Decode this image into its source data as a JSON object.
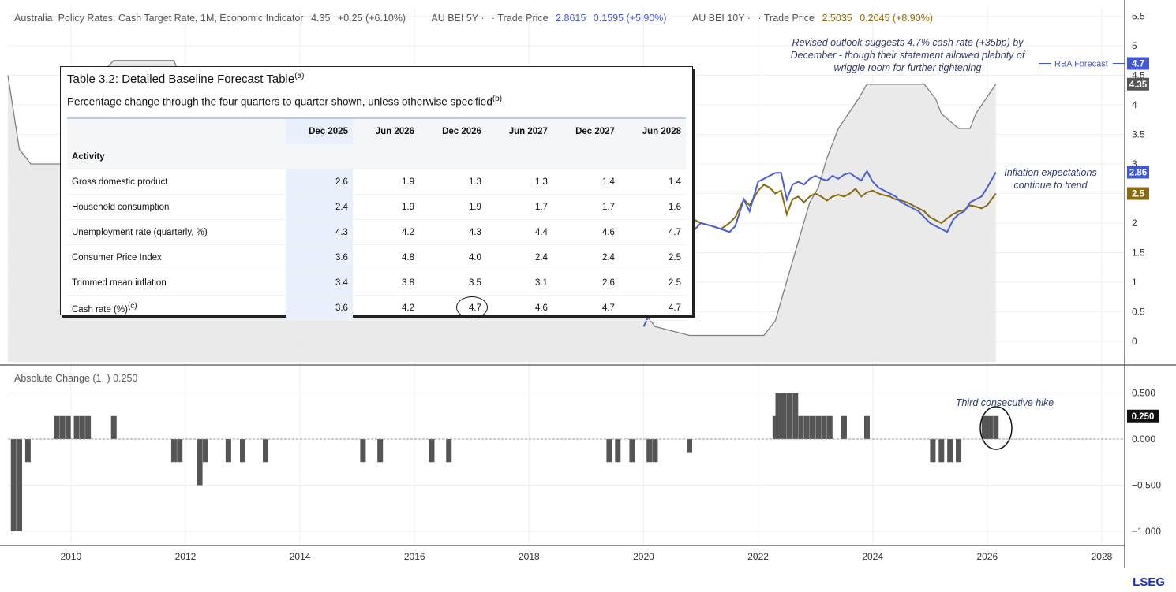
{
  "header": {
    "main_series": "Australia, Policy Rates, Cash Target Rate, 1M, Economic Indicator",
    "main_value": "4.35",
    "main_change": "+0.25 (+6.10%)",
    "bei5_name": "AU BEI 5Y ·",
    "bei5_trade_label": "· Trade Price",
    "bei5_value": "2.8615",
    "bei5_change": "0.1595 (+5.90%)",
    "bei10_name": "AU BEI 10Y ·",
    "bei10_trade_label": "· Trade Price",
    "bei10_value": "2.5035",
    "bei10_change": "0.2045 (+8.90%)"
  },
  "subpanel_title": "Absolute Change (1, )  0.250",
  "annotations": {
    "outlook": "Revised outlook suggests 4.7% cash rate (+35bp) by December - though their statement allowed plebnty of wriggle room for further tightening",
    "inflation": "Inflation expectations continue to trend",
    "hike": "Third consecutive hike",
    "rba_label": "RBA Forecast"
  },
  "logo": "LSEG",
  "colors": {
    "cash_rate": "#808080",
    "cash_fill": "#e6e6e6",
    "bei5": "#4a5ed6",
    "bei10": "#8a6a10",
    "bars": "#555555"
  },
  "table": {
    "title": "Table 3.2: Detailed Baseline Forecast Table",
    "title_sup": "(a)",
    "subtitle": "Percentage change through the four quarters to quarter shown, unless otherwise specified",
    "subtitle_sup": "(b)",
    "columns": [
      "Dec 2025",
      "Jun 2026",
      "Dec 2026",
      "Jun 2027",
      "Dec 2027",
      "Jun 2028"
    ],
    "section": "Activity",
    "rows": [
      {
        "label": "Gross domestic product",
        "values": [
          "2.6",
          "1.9",
          "1.3",
          "1.3",
          "1.4",
          "1.4"
        ]
      },
      {
        "label": "Household consumption",
        "values": [
          "2.4",
          "1.9",
          "1.9",
          "1.7",
          "1.7",
          "1.6"
        ]
      },
      {
        "label": "Unemployment rate (quarterly, %)",
        "values": [
          "4.3",
          "4.2",
          "4.3",
          "4.4",
          "4.6",
          "4.7"
        ]
      },
      {
        "label": "Consumer Price Index",
        "values": [
          "3.6",
          "4.8",
          "4.0",
          "2.4",
          "2.4",
          "2.5"
        ]
      },
      {
        "label": "Trimmed mean inflation",
        "values": [
          "3.4",
          "3.8",
          "3.5",
          "3.1",
          "2.6",
          "2.5"
        ]
      },
      {
        "label": "Cash rate (%)",
        "label_sup": "(c)",
        "values": [
          "3.6",
          "4.2",
          "4.7",
          "4.6",
          "4.7",
          "4.7"
        ]
      }
    ]
  },
  "chart_data": [
    {
      "type": "line",
      "x_axis_ticks": [
        "2010",
        "2012",
        "2014",
        "2016",
        "2018",
        "2020",
        "2022",
        "2024",
        "2026",
        "2028"
      ],
      "xlim": [
        2008.9,
        2028.4
      ],
      "ylim": [
        -0.25,
        5.6
      ],
      "y_ticks": [
        "0",
        "0.5",
        "1",
        "1.5",
        "2",
        "2.5",
        "3",
        "3.5",
        "4",
        "4.5",
        "5",
        "5.5"
      ],
      "last_value_labels": {
        "rba": "4.7",
        "cash": "4.35",
        "bei5": "2.86",
        "bei10": "2.5"
      },
      "series": [
        {
          "name": "Australia, Policy Rates, Cash Target Rate, 1M, Economic Indicator",
          "x": [
            2008.9,
            2009.1,
            2009.3,
            2009.5,
            2009.75,
            2009.85,
            2010.0,
            2010.1,
            2010.25,
            2010.5,
            2010.75,
            2010.9,
            2011.0,
            2011.8,
            2011.9,
            2012.0,
            2012.2,
            2012.4,
            2012.5,
            2012.8,
            2013.0,
            2013.3,
            2013.6,
            2013.9,
            2015.1,
            2015.4,
            2016.3,
            2016.6,
            2019.4,
            2019.55,
            2019.8,
            2020.2,
            2020.8,
            2022.1,
            2022.3,
            2022.45,
            2022.6,
            2022.75,
            2022.9,
            2023.05,
            2023.2,
            2023.4,
            2023.75,
            2023.9,
            2024.0,
            2024.9,
            2025.1,
            2025.2,
            2025.5,
            2025.7,
            2025.8,
            2026.15
          ],
          "y": [
            4.5,
            3.25,
            3.0,
            3.0,
            3.0,
            3.0,
            3.75,
            4.0,
            4.5,
            4.5,
            4.75,
            4.75,
            4.75,
            4.75,
            4.5,
            4.25,
            4.25,
            3.75,
            3.5,
            3.25,
            3.0,
            2.75,
            2.5,
            2.5,
            2.25,
            2.0,
            1.75,
            1.5,
            1.25,
            1.0,
            0.75,
            0.25,
            0.1,
            0.1,
            0.35,
            0.85,
            1.35,
            1.85,
            2.35,
            2.6,
            3.1,
            3.6,
            4.1,
            4.35,
            4.35,
            4.35,
            4.1,
            3.85,
            3.6,
            3.6,
            3.85,
            4.35
          ]
        },
        {
          "name": "AU BEI 5Y",
          "x": [
            2020.0,
            2020.1,
            2020.2,
            2020.3,
            2020.4,
            2020.5,
            2020.6,
            2020.75,
            2020.9,
            2021.0,
            2021.2,
            2021.35,
            2021.5,
            2021.6,
            2021.75,
            2021.85,
            2022.0,
            2022.1,
            2022.2,
            2022.3,
            2022.4,
            2022.5,
            2022.6,
            2022.7,
            2022.8,
            2022.9,
            2023.0,
            2023.1,
            2023.2,
            2023.3,
            2023.4,
            2023.5,
            2023.6,
            2023.7,
            2023.8,
            2023.9,
            2024.0,
            2024.1,
            2024.2,
            2024.3,
            2024.4,
            2024.5,
            2024.6,
            2024.7,
            2024.8,
            2024.9,
            2025.0,
            2025.1,
            2025.2,
            2025.3,
            2025.4,
            2025.5,
            2025.6,
            2025.7,
            2025.8,
            2025.9,
            2026.0,
            2026.15
          ],
          "y": [
            0.25,
            0.45,
            0.65,
            0.85,
            1.0,
            1.2,
            1.45,
            1.75,
            1.9,
            2.0,
            1.95,
            1.9,
            1.85,
            1.95,
            2.4,
            2.2,
            2.7,
            2.75,
            2.8,
            2.85,
            2.85,
            2.4,
            2.65,
            2.7,
            2.65,
            2.75,
            2.8,
            2.75,
            2.72,
            2.8,
            2.75,
            2.82,
            2.85,
            2.78,
            2.72,
            2.88,
            2.7,
            2.6,
            2.55,
            2.5,
            2.45,
            2.35,
            2.3,
            2.25,
            2.2,
            2.1,
            2.0,
            1.95,
            1.9,
            1.85,
            2.05,
            2.15,
            2.2,
            2.35,
            2.4,
            2.45,
            2.6,
            2.86
          ]
        },
        {
          "name": "AU BEI 10Y",
          "x": [
            2020.0,
            2020.1,
            2020.2,
            2020.3,
            2020.4,
            2020.5,
            2020.6,
            2020.75,
            2020.9,
            2021.0,
            2021.2,
            2021.35,
            2021.5,
            2021.6,
            2021.75,
            2021.85,
            2022.0,
            2022.1,
            2022.2,
            2022.3,
            2022.4,
            2022.5,
            2022.6,
            2022.7,
            2022.8,
            2022.9,
            2023.0,
            2023.1,
            2023.2,
            2023.3,
            2023.4,
            2023.5,
            2023.6,
            2023.7,
            2023.8,
            2023.9,
            2024.0,
            2024.1,
            2024.2,
            2024.3,
            2024.4,
            2024.5,
            2024.6,
            2024.7,
            2024.8,
            2024.9,
            2025.0,
            2025.1,
            2025.2,
            2025.3,
            2025.4,
            2025.5,
            2025.6,
            2025.7,
            2025.8,
            2025.9,
            2026.0,
            2026.15
          ],
          "y": [
            1.2,
            1.15,
            1.25,
            1.3,
            1.4,
            1.6,
            1.85,
            2.0,
            2.05,
            2.0,
            1.95,
            1.9,
            2.0,
            2.1,
            2.4,
            2.3,
            2.55,
            2.65,
            2.6,
            2.5,
            2.55,
            2.15,
            2.4,
            2.45,
            2.35,
            2.45,
            2.5,
            2.45,
            2.38,
            2.45,
            2.48,
            2.45,
            2.5,
            2.58,
            2.45,
            2.52,
            2.55,
            2.5,
            2.47,
            2.45,
            2.4,
            2.38,
            2.35,
            2.3,
            2.25,
            2.2,
            2.1,
            2.05,
            2.0,
            2.08,
            2.15,
            2.2,
            2.22,
            2.3,
            2.28,
            2.25,
            2.3,
            2.5
          ]
        }
      ]
    },
    {
      "type": "bar",
      "title": "Absolute Change (1, )",
      "ylim": [
        -1.05,
        0.6
      ],
      "y_ticks": [
        "0.500",
        "0.000",
        "−0.500",
        "−1.000"
      ],
      "last_value_label": "0.250",
      "x": [
        2009.0,
        2009.1,
        2009.25,
        2009.75,
        2009.85,
        2009.95,
        2010.1,
        2010.2,
        2010.3,
        2010.75,
        2011.8,
        2011.9,
        2012.25,
        2012.35,
        2012.75,
        2013.0,
        2013.4,
        2015.1,
        2015.4,
        2016.3,
        2016.6,
        2019.4,
        2019.55,
        2019.8,
        2020.1,
        2020.2,
        2020.8,
        2022.3,
        2022.35,
        2022.45,
        2022.55,
        2022.65,
        2022.75,
        2022.85,
        2022.95,
        2023.05,
        2023.15,
        2023.25,
        2023.5,
        2023.9,
        2025.05,
        2025.2,
        2025.35,
        2025.5,
        2025.95,
        2026.05,
        2026.15
      ],
      "values": [
        -1.0,
        -1.0,
        -0.25,
        0.25,
        0.25,
        0.25,
        0.25,
        0.25,
        0.25,
        0.25,
        -0.25,
        -0.25,
        -0.5,
        -0.25,
        -0.25,
        -0.25,
        -0.25,
        -0.25,
        -0.25,
        -0.25,
        -0.25,
        -0.25,
        -0.25,
        -0.25,
        -0.25,
        -0.25,
        -0.15,
        0.25,
        0.5,
        0.5,
        0.5,
        0.5,
        0.25,
        0.25,
        0.25,
        0.25,
        0.25,
        0.25,
        0.25,
        0.25,
        -0.25,
        -0.25,
        -0.25,
        -0.25,
        0.25,
        0.25,
        0.25
      ]
    }
  ]
}
